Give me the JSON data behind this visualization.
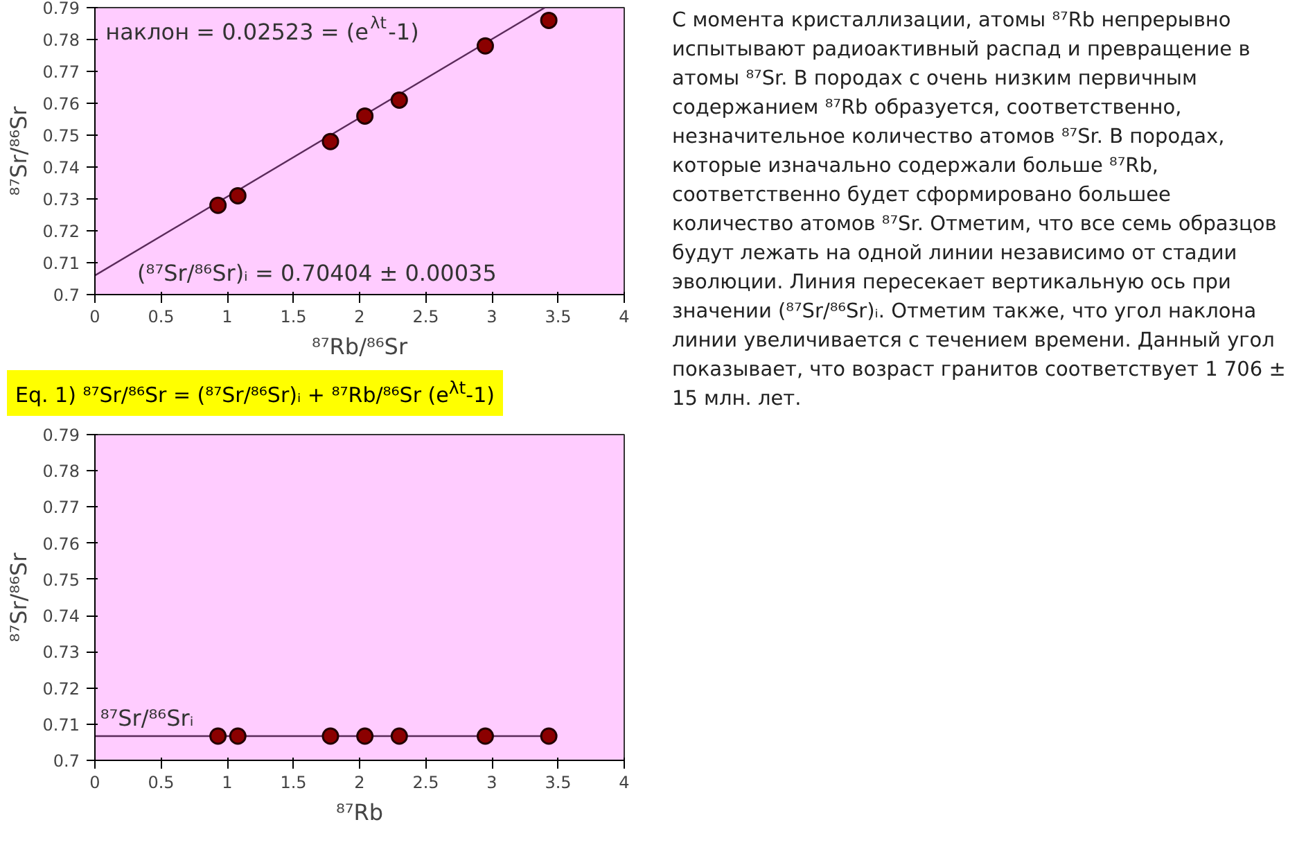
{
  "chart_data": [
    {
      "type": "scatter",
      "xlabel": "⁸⁷Rb/⁸⁶Sr",
      "ylabel": "⁸⁷Sr/⁸⁶Sr",
      "xlim": [
        0,
        4
      ],
      "xticks": [
        0,
        0.5,
        1,
        1.5,
        2,
        2.5,
        3,
        3.5,
        4
      ],
      "ylim": [
        0.7,
        0.79
      ],
      "yticks": [
        0.7,
        0.71,
        0.72,
        0.73,
        0.74,
        0.75,
        0.76,
        0.77,
        0.78,
        0.79
      ],
      "series": [
        {
          "type": "line",
          "marker": "none",
          "color": "#5a2a5a",
          "x": [
            0,
            3.4
          ],
          "values": [
            0.706,
            0.79
          ]
        },
        {
          "type": "scatter",
          "marker": "circle",
          "color": "#8b0000",
          "x": [
            0.93,
            1.08,
            1.78,
            2.04,
            2.3,
            2.95,
            3.43
          ],
          "values": [
            0.728,
            0.731,
            0.748,
            0.756,
            0.761,
            0.778,
            0.786
          ]
        }
      ],
      "annotations": [
        "наклон = 0.02523 = (e$^{λt}$-1)",
        "(⁸⁷Sr/⁸⁶Sr)ᵢ = 0.70404 ± 0.00035"
      ]
    },
    {
      "type": "scatter",
      "xlabel": "⁸⁷Rb",
      "ylabel": "⁸⁷Sr/⁸⁶Sr",
      "xlim": [
        0,
        4
      ],
      "xticks": [
        0,
        0.5,
        1,
        1.5,
        2,
        2.5,
        3,
        3.5,
        4
      ],
      "ylim": [
        0.7,
        0.79
      ],
      "yticks": [
        0.7,
        0.71,
        0.72,
        0.73,
        0.74,
        0.75,
        0.76,
        0.77,
        0.78,
        0.79
      ],
      "series": [
        {
          "type": "line",
          "marker": "none",
          "color": "#5a2a5a",
          "x": [
            0,
            3.45
          ],
          "values": [
            0.7067,
            0.7067
          ]
        },
        {
          "type": "scatter",
          "marker": "circle",
          "color": "#8b0000",
          "x": [
            0.93,
            1.08,
            1.78,
            2.04,
            2.3,
            2.95,
            3.43
          ],
          "values": [
            0.7067,
            0.7067,
            0.7067,
            0.7067,
            0.7067,
            0.7067,
            0.7067
          ]
        }
      ],
      "annotations": [
        "⁸⁷Sr/⁸⁶Srᵢ"
      ]
    },
    {
      "type": "other",
      "annotations": [
        "Eq. 1) ⁸⁷Sr/⁸⁶Sr = (⁸⁷Sr/⁸⁶Sr)ᵢ + ⁸⁷Rb/⁸⁶Sr (e$^{λt}$-1)",
        "С момента кристаллизации, атомы ⁸⁷Rb непрерывно испытывают радиоактивный распад и превращение в атомы ⁸⁷Sr. В породах с очень низким первичным содержанием ⁸⁷Rb образуется, соответственно, незначительное количество атомов ⁸⁷Sr. В породах, которые изначально содержали больше ⁸⁷Rb, соответственно будет сформировано большее количество атомов ⁸⁷Sr. Отметим, что все семь образцов будут лежать на одной линии независимо от стадии эволюции. Линия пересекает вертикальную ось при значении (⁸⁷Sr/⁸⁶Sr)ᵢ. Отметим также, что угол наклона линии увеличивается с течением времени. Данный угол показывает, что возраст гранитов соответствует 1 706 ± 15 млн. лет."
      ]
    }
  ]
}
